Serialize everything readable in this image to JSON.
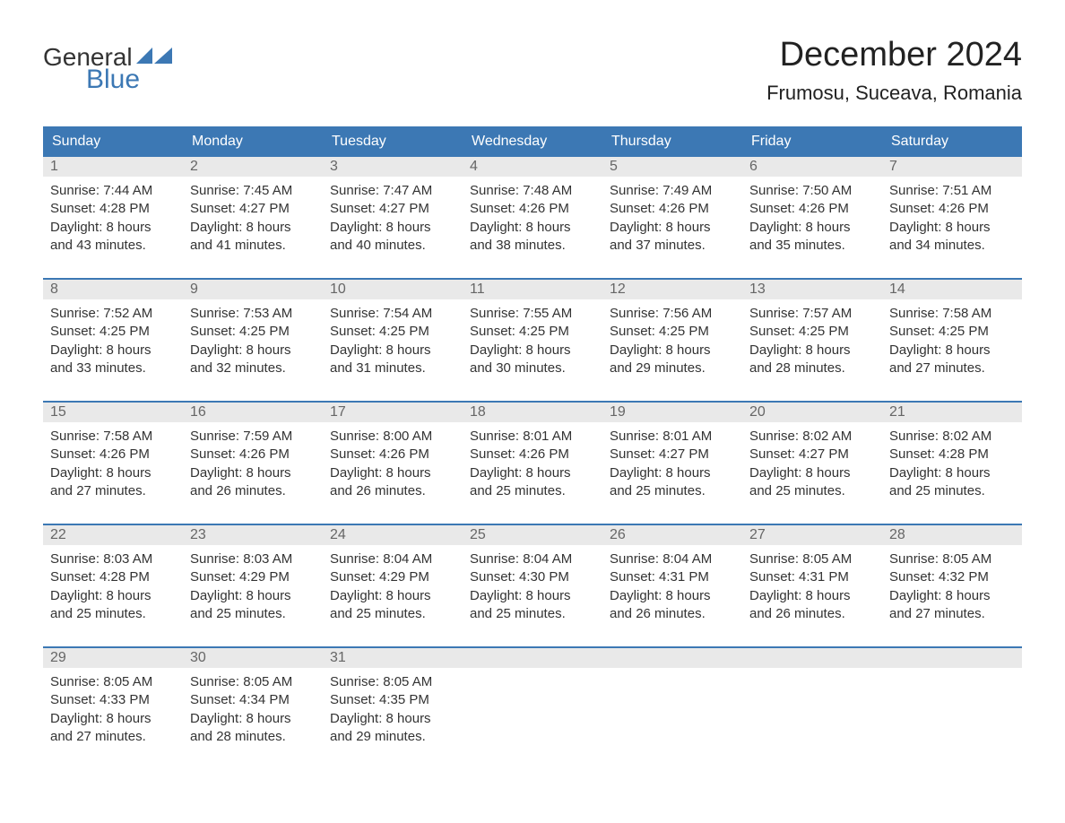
{
  "logo": {
    "general": "General",
    "blue": "Blue"
  },
  "title": "December 2024",
  "location": "Frumosu, Suceava, Romania",
  "colors": {
    "header_bg": "#3c78b4",
    "header_text": "#ffffff",
    "day_number_bg": "#e9e9e9",
    "day_number_text": "#666666",
    "body_text": "#333333",
    "logo_blue": "#3c78b4",
    "week_border": "#3c78b4"
  },
  "day_headers": [
    "Sunday",
    "Monday",
    "Tuesday",
    "Wednesday",
    "Thursday",
    "Friday",
    "Saturday"
  ],
  "weeks": [
    [
      {
        "day": "1",
        "sunrise": "Sunrise: 7:44 AM",
        "sunset": "Sunset: 4:28 PM",
        "daylight1": "Daylight: 8 hours",
        "daylight2": "and 43 minutes."
      },
      {
        "day": "2",
        "sunrise": "Sunrise: 7:45 AM",
        "sunset": "Sunset: 4:27 PM",
        "daylight1": "Daylight: 8 hours",
        "daylight2": "and 41 minutes."
      },
      {
        "day": "3",
        "sunrise": "Sunrise: 7:47 AM",
        "sunset": "Sunset: 4:27 PM",
        "daylight1": "Daylight: 8 hours",
        "daylight2": "and 40 minutes."
      },
      {
        "day": "4",
        "sunrise": "Sunrise: 7:48 AM",
        "sunset": "Sunset: 4:26 PM",
        "daylight1": "Daylight: 8 hours",
        "daylight2": "and 38 minutes."
      },
      {
        "day": "5",
        "sunrise": "Sunrise: 7:49 AM",
        "sunset": "Sunset: 4:26 PM",
        "daylight1": "Daylight: 8 hours",
        "daylight2": "and 37 minutes."
      },
      {
        "day": "6",
        "sunrise": "Sunrise: 7:50 AM",
        "sunset": "Sunset: 4:26 PM",
        "daylight1": "Daylight: 8 hours",
        "daylight2": "and 35 minutes."
      },
      {
        "day": "7",
        "sunrise": "Sunrise: 7:51 AM",
        "sunset": "Sunset: 4:26 PM",
        "daylight1": "Daylight: 8 hours",
        "daylight2": "and 34 minutes."
      }
    ],
    [
      {
        "day": "8",
        "sunrise": "Sunrise: 7:52 AM",
        "sunset": "Sunset: 4:25 PM",
        "daylight1": "Daylight: 8 hours",
        "daylight2": "and 33 minutes."
      },
      {
        "day": "9",
        "sunrise": "Sunrise: 7:53 AM",
        "sunset": "Sunset: 4:25 PM",
        "daylight1": "Daylight: 8 hours",
        "daylight2": "and 32 minutes."
      },
      {
        "day": "10",
        "sunrise": "Sunrise: 7:54 AM",
        "sunset": "Sunset: 4:25 PM",
        "daylight1": "Daylight: 8 hours",
        "daylight2": "and 31 minutes."
      },
      {
        "day": "11",
        "sunrise": "Sunrise: 7:55 AM",
        "sunset": "Sunset: 4:25 PM",
        "daylight1": "Daylight: 8 hours",
        "daylight2": "and 30 minutes."
      },
      {
        "day": "12",
        "sunrise": "Sunrise: 7:56 AM",
        "sunset": "Sunset: 4:25 PM",
        "daylight1": "Daylight: 8 hours",
        "daylight2": "and 29 minutes."
      },
      {
        "day": "13",
        "sunrise": "Sunrise: 7:57 AM",
        "sunset": "Sunset: 4:25 PM",
        "daylight1": "Daylight: 8 hours",
        "daylight2": "and 28 minutes."
      },
      {
        "day": "14",
        "sunrise": "Sunrise: 7:58 AM",
        "sunset": "Sunset: 4:25 PM",
        "daylight1": "Daylight: 8 hours",
        "daylight2": "and 27 minutes."
      }
    ],
    [
      {
        "day": "15",
        "sunrise": "Sunrise: 7:58 AM",
        "sunset": "Sunset: 4:26 PM",
        "daylight1": "Daylight: 8 hours",
        "daylight2": "and 27 minutes."
      },
      {
        "day": "16",
        "sunrise": "Sunrise: 7:59 AM",
        "sunset": "Sunset: 4:26 PM",
        "daylight1": "Daylight: 8 hours",
        "daylight2": "and 26 minutes."
      },
      {
        "day": "17",
        "sunrise": "Sunrise: 8:00 AM",
        "sunset": "Sunset: 4:26 PM",
        "daylight1": "Daylight: 8 hours",
        "daylight2": "and 26 minutes."
      },
      {
        "day": "18",
        "sunrise": "Sunrise: 8:01 AM",
        "sunset": "Sunset: 4:26 PM",
        "daylight1": "Daylight: 8 hours",
        "daylight2": "and 25 minutes."
      },
      {
        "day": "19",
        "sunrise": "Sunrise: 8:01 AM",
        "sunset": "Sunset: 4:27 PM",
        "daylight1": "Daylight: 8 hours",
        "daylight2": "and 25 minutes."
      },
      {
        "day": "20",
        "sunrise": "Sunrise: 8:02 AM",
        "sunset": "Sunset: 4:27 PM",
        "daylight1": "Daylight: 8 hours",
        "daylight2": "and 25 minutes."
      },
      {
        "day": "21",
        "sunrise": "Sunrise: 8:02 AM",
        "sunset": "Sunset: 4:28 PM",
        "daylight1": "Daylight: 8 hours",
        "daylight2": "and 25 minutes."
      }
    ],
    [
      {
        "day": "22",
        "sunrise": "Sunrise: 8:03 AM",
        "sunset": "Sunset: 4:28 PM",
        "daylight1": "Daylight: 8 hours",
        "daylight2": "and 25 minutes."
      },
      {
        "day": "23",
        "sunrise": "Sunrise: 8:03 AM",
        "sunset": "Sunset: 4:29 PM",
        "daylight1": "Daylight: 8 hours",
        "daylight2": "and 25 minutes."
      },
      {
        "day": "24",
        "sunrise": "Sunrise: 8:04 AM",
        "sunset": "Sunset: 4:29 PM",
        "daylight1": "Daylight: 8 hours",
        "daylight2": "and 25 minutes."
      },
      {
        "day": "25",
        "sunrise": "Sunrise: 8:04 AM",
        "sunset": "Sunset: 4:30 PM",
        "daylight1": "Daylight: 8 hours",
        "daylight2": "and 25 minutes."
      },
      {
        "day": "26",
        "sunrise": "Sunrise: 8:04 AM",
        "sunset": "Sunset: 4:31 PM",
        "daylight1": "Daylight: 8 hours",
        "daylight2": "and 26 minutes."
      },
      {
        "day": "27",
        "sunrise": "Sunrise: 8:05 AM",
        "sunset": "Sunset: 4:31 PM",
        "daylight1": "Daylight: 8 hours",
        "daylight2": "and 26 minutes."
      },
      {
        "day": "28",
        "sunrise": "Sunrise: 8:05 AM",
        "sunset": "Sunset: 4:32 PM",
        "daylight1": "Daylight: 8 hours",
        "daylight2": "and 27 minutes."
      }
    ],
    [
      {
        "day": "29",
        "sunrise": "Sunrise: 8:05 AM",
        "sunset": "Sunset: 4:33 PM",
        "daylight1": "Daylight: 8 hours",
        "daylight2": "and 27 minutes."
      },
      {
        "day": "30",
        "sunrise": "Sunrise: 8:05 AM",
        "sunset": "Sunset: 4:34 PM",
        "daylight1": "Daylight: 8 hours",
        "daylight2": "and 28 minutes."
      },
      {
        "day": "31",
        "sunrise": "Sunrise: 8:05 AM",
        "sunset": "Sunset: 4:35 PM",
        "daylight1": "Daylight: 8 hours",
        "daylight2": "and 29 minutes."
      },
      {
        "empty": true
      },
      {
        "empty": true
      },
      {
        "empty": true
      },
      {
        "empty": true
      }
    ]
  ]
}
